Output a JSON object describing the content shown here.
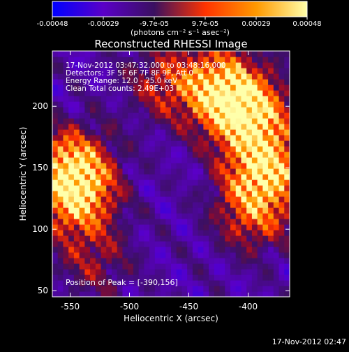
{
  "colorbar": {
    "tick_labels": [
      "-0.00048",
      "-0.00029",
      "-9.7e-05",
      "9.7e-05",
      "0.00029",
      "0.00048"
    ],
    "unit_label": "(photons cm⁻² s⁻¹ asec⁻²)",
    "range": [
      -0.00048,
      0.00048
    ],
    "colors": [
      "#0000ff",
      "#5a00c8",
      "#3a1060",
      "#ff3300",
      "#ff9900",
      "#ffffaa"
    ]
  },
  "chart_data": {
    "type": "heatmap",
    "title": "Reconstructed RHESSI Image",
    "xlabel": "Heliocentric X (arcsec)",
    "ylabel": "Heliocentric Y (arcsec)",
    "xlim": [
      -565,
      -365
    ],
    "ylim": [
      45,
      245
    ],
    "xticks": [
      -550,
      -500,
      -450,
      -400
    ],
    "yticks": [
      50,
      100,
      150,
      200
    ],
    "annotations": [
      "17-Nov-2012 03:47:32.000 to 03:48:16.000",
      "Detectors: 3F 5F 6F 7F 8F 9F, Att 0",
      "Energy Range: 12.0 - 25.0 keV",
      "Clean     Total counts: 2.49E+03"
    ],
    "peak_text": "Position of Peak = [-390,156]",
    "peak": [
      -390,
      156
    ],
    "sources": [
      {
        "x": -400,
        "y": 195,
        "intensity": 1.0
      },
      {
        "x": -425,
        "y": 215,
        "intensity": 0.85
      },
      {
        "x": -385,
        "y": 150,
        "intensity": 0.9
      },
      {
        "x": -548,
        "y": 150,
        "intensity": 0.85
      },
      {
        "x": -545,
        "y": 125,
        "intensity": 0.7
      },
      {
        "x": -395,
        "y": 115,
        "intensity": 0.55
      },
      {
        "x": -470,
        "y": 220,
        "intensity": 0.4
      },
      {
        "x": -530,
        "y": 75,
        "intensity": 0.3
      }
    ]
  },
  "timestamp": "17-Nov-2012 02:47"
}
